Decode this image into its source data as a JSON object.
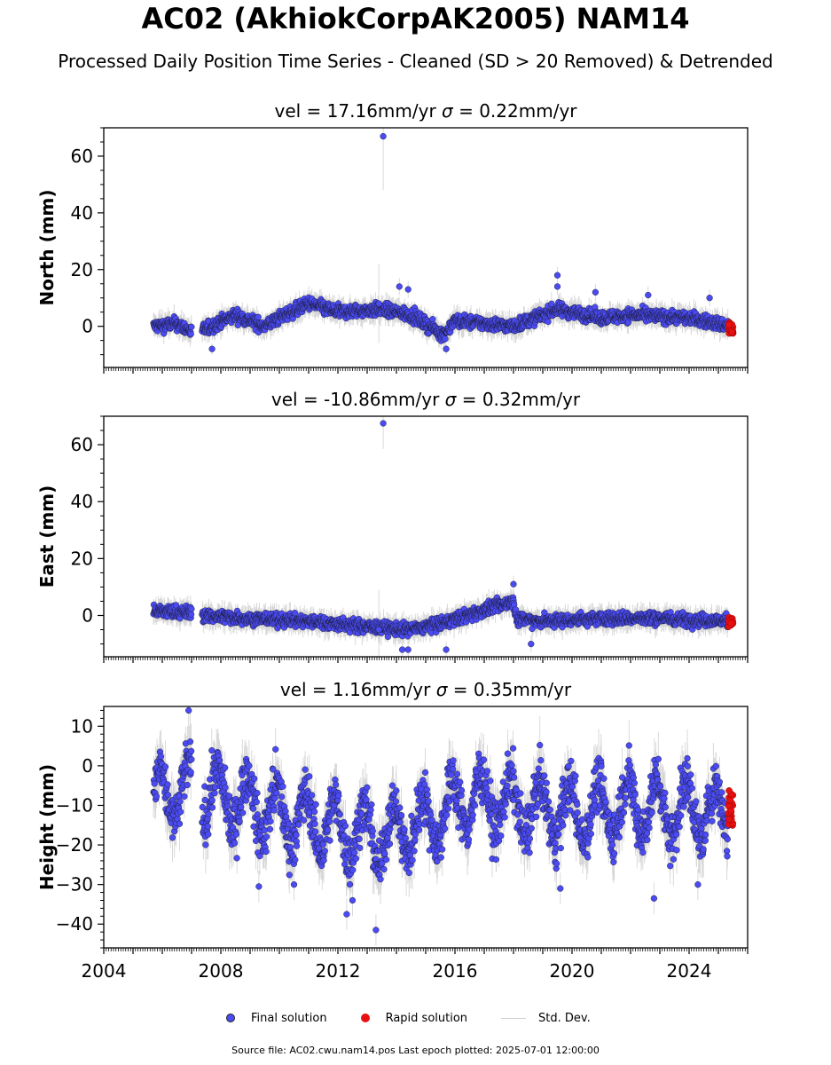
{
  "title": "AC02 (AkhiokCorpAK2005) NAM14",
  "subtitle": "Processed Daily Position Time Series - Cleaned (SD > 20 Removed) & Detrended",
  "footer": "Source file: AC02.cwu.nam14.pos  Last epoch plotted: 2025-07-01 12:00:00",
  "colors": {
    "final": "#4b4bf5",
    "rapid": "#e81010",
    "stddev": "#b5b5b5",
    "edge": "#1a1a2e"
  },
  "legend": [
    {
      "label": "Final solution",
      "kind": "final"
    },
    {
      "label": "Rapid solution",
      "kind": "rapid"
    },
    {
      "label": "Std. Dev.",
      "kind": "stddev"
    }
  ],
  "chart_data": [
    {
      "type": "scatter",
      "panel_title_vel": "vel = 17.16mm/yr",
      "panel_title_sigma": "= 0.22mm/yr",
      "ylabel": "North (mm)",
      "xlim": [
        2004.0,
        2026.0
      ],
      "ylim": [
        -14.5,
        70
      ],
      "yticks": [
        0,
        20,
        40,
        60
      ],
      "yminor": 5,
      "noise": 1.6,
      "err": 3.0,
      "profile": [
        [
          2005.7,
          0
        ],
        [
          2006.5,
          1
        ],
        [
          2007.0,
          -2
        ],
        [
          2007.5,
          -1
        ],
        [
          2008.5,
          4
        ],
        [
          2009.5,
          0
        ],
        [
          2010.0,
          3
        ],
        [
          2011.0,
          8
        ],
        [
          2012.0,
          5
        ],
        [
          2013.5,
          6
        ],
        [
          2014.5,
          4
        ],
        [
          2015.6,
          -3
        ],
        [
          2016.0,
          2
        ],
        [
          2018.0,
          0
        ],
        [
          2018.5,
          2
        ],
        [
          2019.5,
          6
        ],
        [
          2020.0,
          5
        ],
        [
          2021.0,
          3
        ],
        [
          2022.0,
          4
        ],
        [
          2024.0,
          3
        ],
        [
          2025.4,
          0
        ]
      ],
      "gaps": [
        [
          2007.0,
          2007.35
        ]
      ],
      "outliers": [
        [
          2013.55,
          67,
          19
        ],
        [
          2007.7,
          -8,
          2
        ],
        [
          2015.7,
          -8,
          2
        ],
        [
          2019.5,
          18,
          3
        ],
        [
          2019.5,
          14,
          3
        ],
        [
          2014.1,
          14,
          3
        ],
        [
          2014.4,
          13,
          3
        ],
        [
          2020.8,
          12,
          3
        ],
        [
          2022.6,
          11,
          3
        ],
        [
          2024.7,
          10,
          3
        ],
        [
          2013.4,
          8,
          14
        ]
      ],
      "rapid": {
        "x": [
          2025.35,
          2025.5
        ],
        "y": [
          -2.5,
          1.5
        ]
      }
    },
    {
      "type": "scatter",
      "panel_title_vel": "vel = -10.86mm/yr",
      "panel_title_sigma": "= 0.32mm/yr",
      "ylabel": "East (mm)",
      "xlim": [
        2004.0,
        2026.0
      ],
      "ylim": [
        -14.5,
        70
      ],
      "yticks": [
        0,
        20,
        40,
        60
      ],
      "yminor": 5,
      "noise": 1.6,
      "err": 3.0,
      "profile": [
        [
          2005.7,
          1.5
        ],
        [
          2007.0,
          1
        ],
        [
          2007.4,
          0
        ],
        [
          2009.0,
          -1
        ],
        [
          2011.0,
          -2
        ],
        [
          2013.0,
          -4
        ],
        [
          2014.5,
          -5
        ],
        [
          2015.5,
          -3
        ],
        [
          2017.0,
          2
        ],
        [
          2018.0,
          5
        ],
        [
          2018.1,
          -1
        ],
        [
          2019.0,
          -2
        ],
        [
          2021.0,
          -1
        ],
        [
          2023.0,
          -1
        ],
        [
          2025.4,
          -2
        ]
      ],
      "gaps": [
        [
          2007.0,
          2007.35
        ]
      ],
      "outliers": [
        [
          2013.55,
          67.5,
          9
        ],
        [
          2018.0,
          11,
          3
        ],
        [
          2014.2,
          -12,
          3
        ],
        [
          2014.4,
          -12,
          3
        ],
        [
          2015.7,
          -12,
          3
        ],
        [
          2018.6,
          -10,
          3
        ],
        [
          2013.4,
          -5,
          14
        ]
      ],
      "rapid": {
        "x": [
          2025.35,
          2025.5
        ],
        "y": [
          -4,
          -0.5
        ]
      }
    },
    {
      "type": "scatter",
      "panel_title_vel": "vel = 1.16mm/yr",
      "panel_title_sigma": "= 0.35mm/yr",
      "ylabel": "Height (mm)",
      "xlim": [
        2004.0,
        2026.0
      ],
      "ylim": [
        -46,
        15
      ],
      "yticks": [
        -40,
        -30,
        -20,
        -10,
        0,
        10
      ],
      "yminor": 2,
      "noise": 4.5,
      "err": 5.0,
      "seasonal": 7,
      "profile": [
        [
          2005.7,
          -8
        ],
        [
          2007.0,
          -6
        ],
        [
          2008.0,
          -8
        ],
        [
          2010.0,
          -12
        ],
        [
          2012.0,
          -16
        ],
        [
          2013.5,
          -18
        ],
        [
          2015.0,
          -14
        ],
        [
          2016.5,
          -8
        ],
        [
          2018.0,
          -10
        ],
        [
          2020.0,
          -12
        ],
        [
          2022.0,
          -10
        ],
        [
          2025.4,
          -12
        ]
      ],
      "gaps": [
        [
          2007.0,
          2007.35
        ]
      ],
      "outliers": [
        [
          2013.3,
          -41.5,
          4
        ],
        [
          2012.3,
          -37.5,
          4
        ],
        [
          2006.9,
          14,
          4
        ],
        [
          2012.5,
          -34,
          4
        ],
        [
          2022.8,
          -33.5,
          4
        ],
        [
          2019.6,
          -31,
          4
        ],
        [
          2024.3,
          -30,
          4
        ],
        [
          2009.3,
          -30.5,
          4
        ],
        [
          2010.5,
          -30,
          4
        ]
      ],
      "rapid": {
        "x": [
          2025.35,
          2025.5
        ],
        "y": [
          -16.5,
          -5.5
        ]
      }
    }
  ],
  "x_tick_labels": [
    "2004",
    "2008",
    "2012",
    "2016",
    "2020",
    "2024"
  ],
  "x_ticks": [
    2004,
    2008,
    2012,
    2016,
    2020,
    2024
  ]
}
